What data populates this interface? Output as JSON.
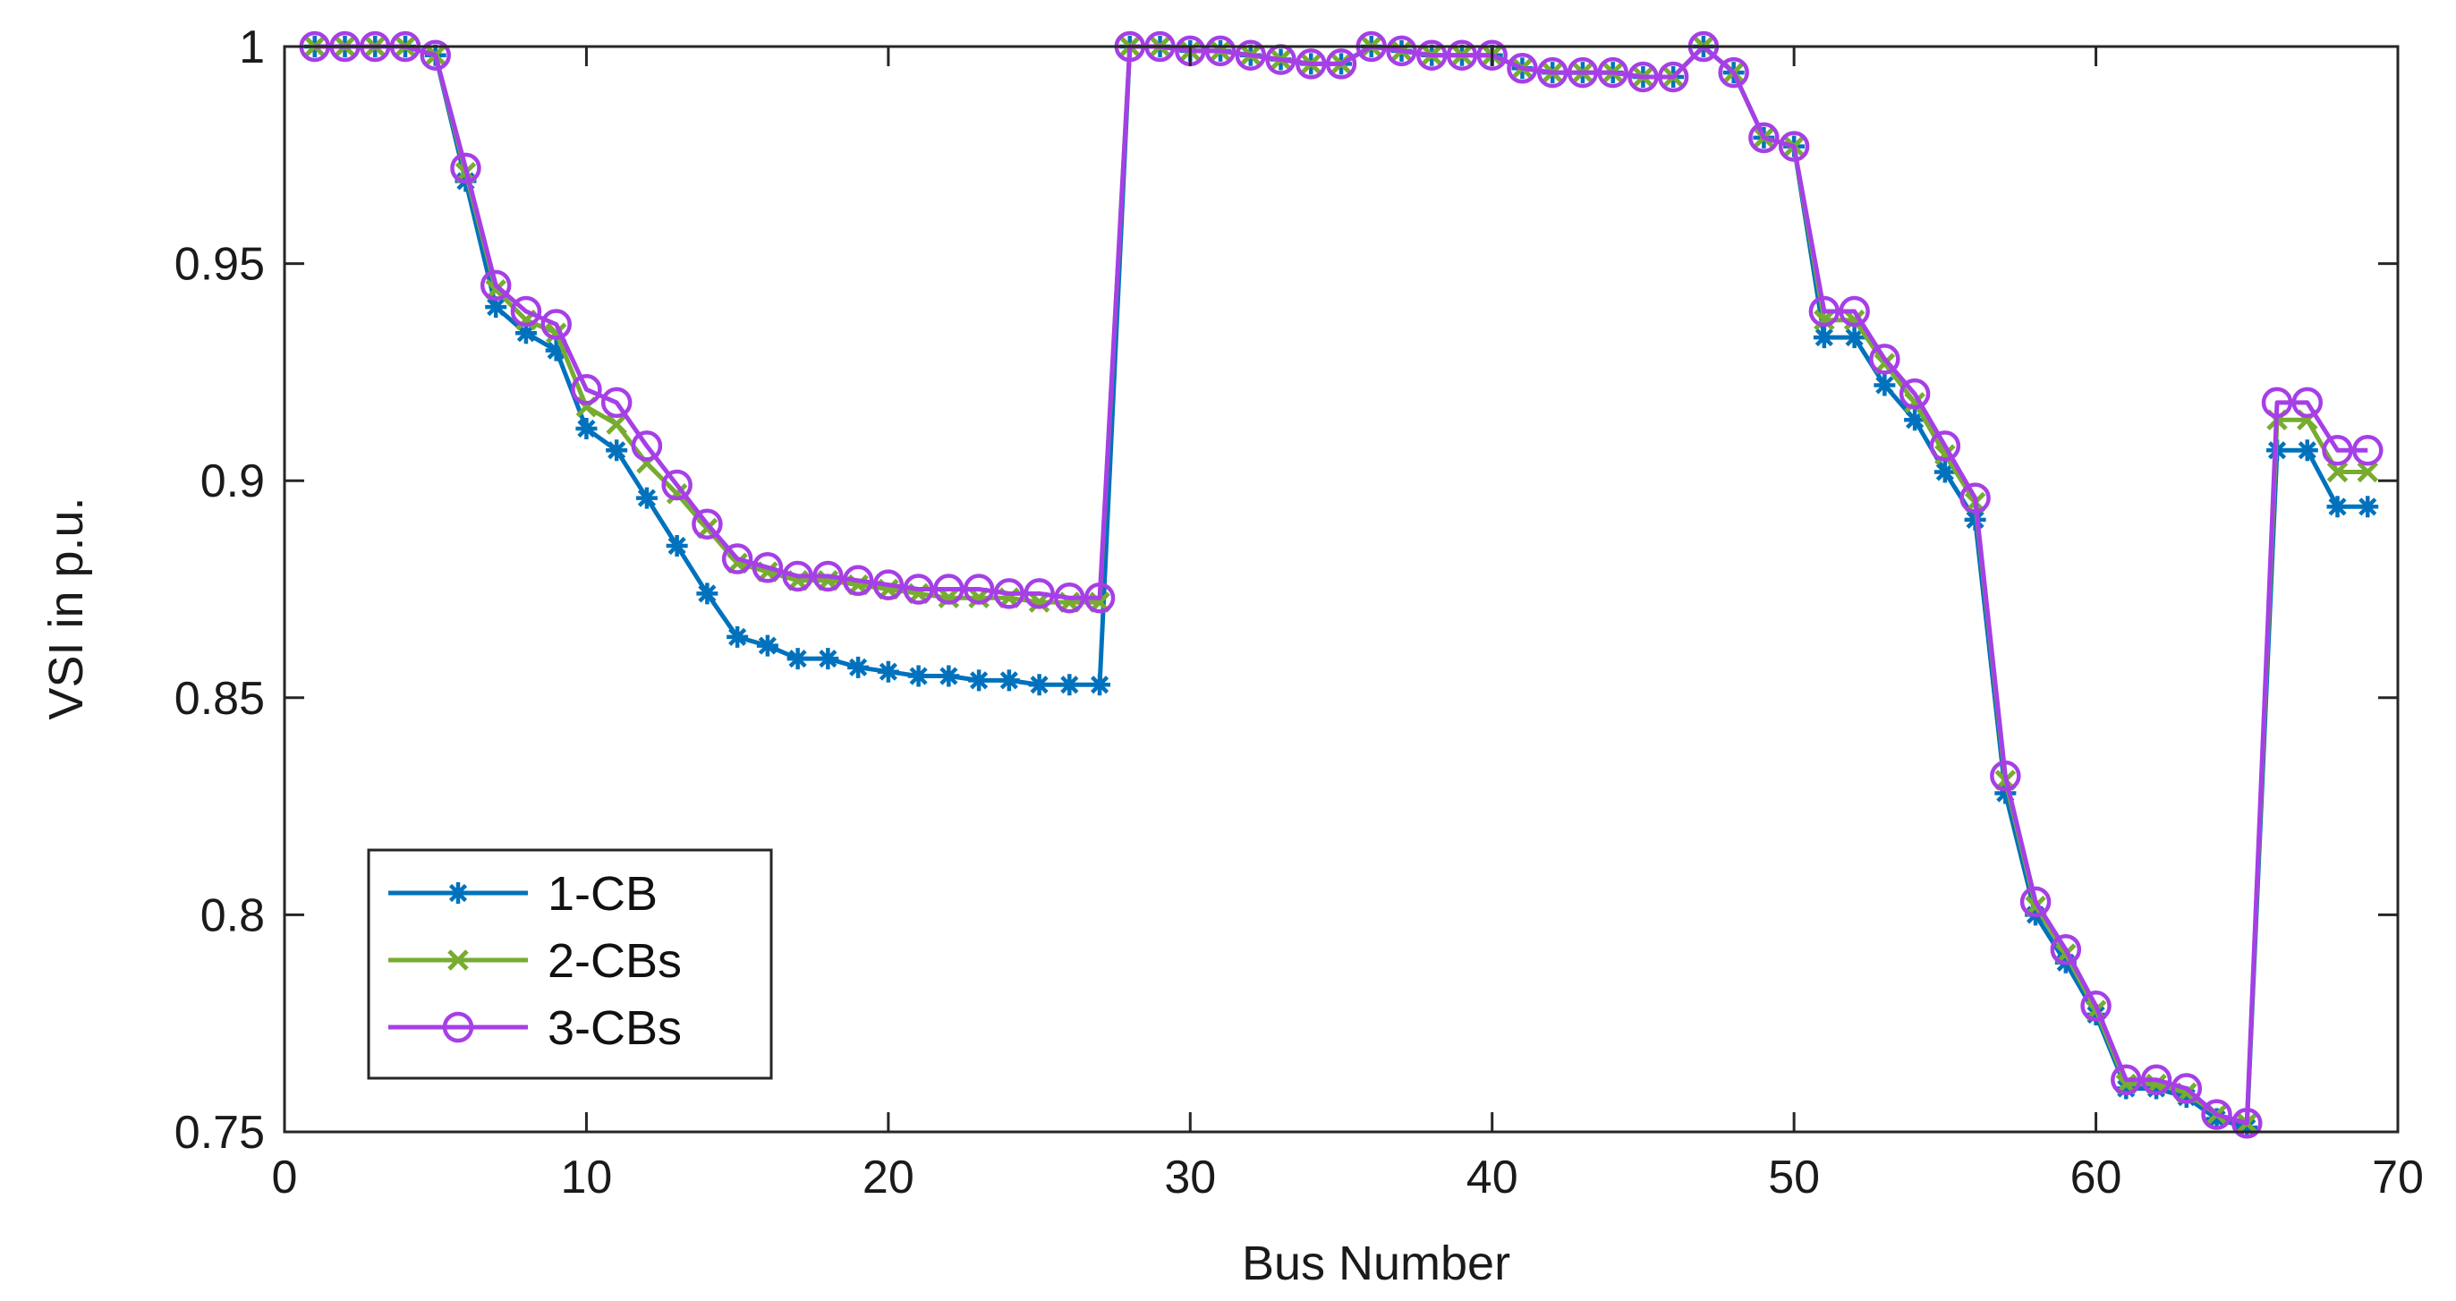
{
  "chart_data": {
    "type": "line",
    "title": "",
    "xlabel": "Bus Number",
    "ylabel": "VSI in p.u.",
    "xlim": [
      0,
      70
    ],
    "ylim": [
      0.75,
      1.0
    ],
    "xticks": [
      0,
      10,
      20,
      30,
      40,
      50,
      60,
      70
    ],
    "xtick_labels": [
      "0",
      "10",
      "20",
      "30",
      "40",
      "50",
      "60",
      "70"
    ],
    "yticks": [
      0.75,
      0.8,
      0.85,
      0.9,
      0.95,
      1.0
    ],
    "ytick_labels": [
      "0.75",
      "0.8",
      "0.85",
      "0.9",
      "0.95",
      "1"
    ],
    "grid": false,
    "legend_position": "bottom-left",
    "x": [
      1,
      2,
      3,
      4,
      5,
      6,
      7,
      8,
      9,
      10,
      11,
      12,
      13,
      14,
      15,
      16,
      17,
      18,
      19,
      20,
      21,
      22,
      23,
      24,
      25,
      26,
      27,
      28,
      29,
      30,
      31,
      32,
      33,
      34,
      35,
      36,
      37,
      38,
      39,
      40,
      41,
      42,
      43,
      44,
      45,
      46,
      47,
      48,
      49,
      50,
      51,
      52,
      53,
      54,
      55,
      56,
      57,
      58,
      59,
      60,
      61,
      62,
      63,
      64,
      65,
      66,
      67,
      68,
      69
    ],
    "series": [
      {
        "name": "1-CB",
        "color": "#0072BD",
        "marker": "asterisk",
        "values": [
          1.0,
          1.0,
          1.0,
          1.0,
          0.998,
          0.969,
          0.94,
          0.934,
          0.93,
          0.912,
          0.907,
          0.896,
          0.885,
          0.874,
          0.864,
          0.862,
          0.859,
          0.859,
          0.857,
          0.856,
          0.855,
          0.855,
          0.854,
          0.854,
          0.853,
          0.853,
          0.853,
          1.0,
          1.0,
          0.999,
          0.999,
          0.998,
          0.997,
          0.996,
          0.996,
          1.0,
          0.999,
          0.998,
          0.998,
          0.998,
          0.995,
          0.994,
          0.994,
          0.994,
          0.993,
          0.993,
          1.0,
          0.994,
          0.979,
          0.977,
          0.933,
          0.933,
          0.922,
          0.914,
          0.902,
          0.891,
          0.828,
          0.8,
          0.789,
          0.777,
          0.76,
          0.76,
          0.758,
          0.753,
          0.751,
          0.907,
          0.907,
          0.894,
          0.894
        ]
      },
      {
        "name": "2-CBs",
        "color": "#77AC30",
        "marker": "x",
        "values": [
          1.0,
          1.0,
          1.0,
          1.0,
          0.998,
          0.971,
          0.944,
          0.937,
          0.934,
          0.917,
          0.913,
          0.904,
          0.897,
          0.889,
          0.881,
          0.879,
          0.877,
          0.877,
          0.876,
          0.875,
          0.874,
          0.873,
          0.873,
          0.873,
          0.872,
          0.872,
          0.872,
          1.0,
          1.0,
          0.999,
          0.999,
          0.998,
          0.997,
          0.996,
          0.996,
          1.0,
          0.999,
          0.998,
          0.998,
          0.998,
          0.995,
          0.994,
          0.994,
          0.994,
          0.993,
          0.993,
          1.0,
          0.994,
          0.979,
          0.977,
          0.937,
          0.937,
          0.927,
          0.918,
          0.906,
          0.895,
          0.831,
          0.802,
          0.791,
          0.778,
          0.761,
          0.761,
          0.759,
          0.754,
          0.752,
          0.914,
          0.914,
          0.902,
          0.902
        ]
      },
      {
        "name": "3-CBs",
        "color": "#A63FE6",
        "marker": "circle",
        "values": [
          1.0,
          1.0,
          1.0,
          1.0,
          0.998,
          0.972,
          0.945,
          0.939,
          0.936,
          0.921,
          0.918,
          0.908,
          0.899,
          0.89,
          0.882,
          0.88,
          0.878,
          0.878,
          0.877,
          0.876,
          0.875,
          0.875,
          0.875,
          0.874,
          0.874,
          0.873,
          0.873,
          1.0,
          1.0,
          0.999,
          0.999,
          0.998,
          0.997,
          0.996,
          0.996,
          1.0,
          0.999,
          0.998,
          0.998,
          0.998,
          0.995,
          0.994,
          0.994,
          0.994,
          0.993,
          0.993,
          1.0,
          0.994,
          0.979,
          0.977,
          0.939,
          0.939,
          0.928,
          0.92,
          0.908,
          0.896,
          0.832,
          0.803,
          0.792,
          0.779,
          0.762,
          0.762,
          0.76,
          0.754,
          0.752,
          0.918,
          0.918,
          0.907,
          0.907
        ]
      }
    ]
  }
}
